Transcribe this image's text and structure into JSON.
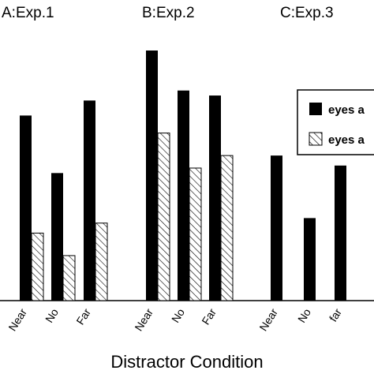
{
  "chart_data": {
    "type": "bar",
    "xlabel": "Distractor Condition",
    "ylim": [
      0,
      10
    ],
    "grid": false,
    "legend": {
      "placement": "top-right",
      "entries": [
        {
          "label": "eyes a",
          "fill": "solid"
        },
        {
          "label": "eyes a",
          "fill": "hatched"
        }
      ]
    },
    "colors": {
      "solid": "#000000",
      "hatch": "#000000",
      "background": "#ffffff"
    },
    "panels": [
      {
        "title": "A:Exp.1",
        "categories": [
          "Near",
          "No",
          "Far"
        ],
        "series": [
          {
            "legend_index": 0,
            "values": [
              7.4,
              5.1,
              8.0
            ]
          },
          {
            "legend_index": 1,
            "values": [
              2.7,
              1.8,
              3.1
            ]
          }
        ]
      },
      {
        "title": "B:Exp.2",
        "categories": [
          "Near",
          "No",
          "Far"
        ],
        "series": [
          {
            "legend_index": 0,
            "values": [
              10.0,
              8.4,
              8.2
            ]
          },
          {
            "legend_index": 1,
            "values": [
              6.7,
              5.3,
              5.8
            ]
          }
        ]
      },
      {
        "title": "C:Exp.3",
        "categories": [
          "Near",
          "No",
          "far"
        ],
        "series": [
          {
            "legend_index": 0,
            "values": [
              5.8,
              3.3,
              5.4
            ]
          }
        ]
      }
    ]
  }
}
